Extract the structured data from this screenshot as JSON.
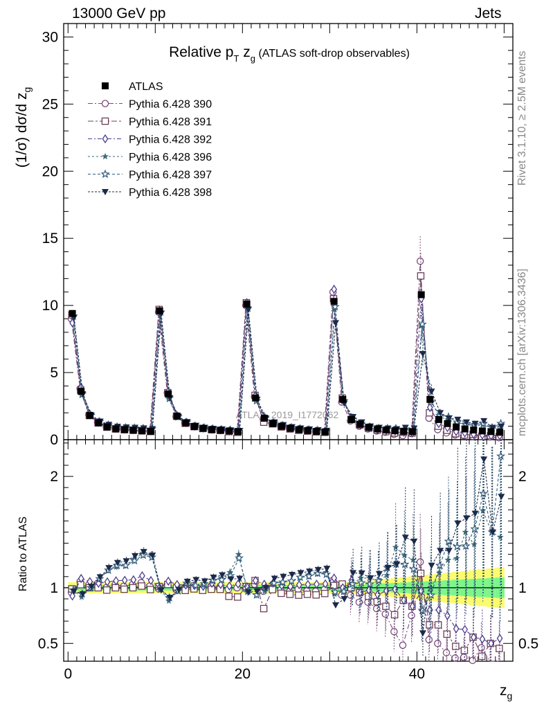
{
  "header": {
    "process": "13000 GeV pp",
    "category": "Jets"
  },
  "side_labels": {
    "generator": "Rivet 3.1.10, ≥ 2.5M events",
    "source": "mcplots.cern.ch [arXiv:1306.3436]"
  },
  "watermark": "ATLAS_2019_I1772062",
  "colors": {
    "atlas": "#000000",
    "s390": "#7b4a7d",
    "s391": "#6b3f55",
    "s392": "#4b3a8a",
    "s396": "#3e6a7a",
    "s397": "#2f5a7a",
    "s398": "#1c2a4a",
    "band_inner": "#7cf58c",
    "band_outer": "#fbfb6f"
  },
  "chart_data": {
    "type": "scatter",
    "title": "Relative p_T z_g (ATLAS soft-drop observables)",
    "title_parts": {
      "a": "Relative p",
      "b": "T",
      "c": " z",
      "d": "g",
      "e": " (ATLAS soft-drop observables)"
    },
    "xlabel": "z_g",
    "xlabel_parts": {
      "main": "z",
      "sub": "g"
    },
    "ylabel": "(1/σ) dσ/d z_g",
    "ylabel_parts": {
      "main": "(1/σ) dσ/d z",
      "sub": "g"
    },
    "ratio_ylabel": "Ratio to ATLAS",
    "xlim": [
      -0.5,
      51
    ],
    "ylim": [
      0,
      31
    ],
    "ratio_ylim": [
      0.34,
      2.33
    ],
    "x_ticks": [
      0,
      20,
      40
    ],
    "y_ticks": [
      0,
      5,
      10,
      15,
      20,
      25,
      30
    ],
    "ratio_ticks": [
      0.5,
      1,
      2
    ],
    "legend_position": "top-left",
    "x": [
      0.5,
      1.5,
      2.5,
      3.5,
      4.5,
      5.5,
      6.5,
      7.5,
      8.5,
      9.5,
      10.5,
      11.5,
      12.5,
      13.5,
      14.5,
      15.5,
      16.5,
      17.5,
      18.5,
      19.5,
      20.5,
      21.5,
      22.5,
      23.5,
      24.5,
      25.5,
      26.5,
      27.5,
      28.5,
      29.5,
      30.5,
      31.5,
      32.5,
      33.5,
      34.5,
      35.5,
      36.5,
      37.5,
      38.5,
      39.5,
      40.5,
      41.5,
      42.5,
      43.5,
      44.5,
      45.5,
      46.5,
      47.5,
      48.5,
      49.5
    ],
    "atlas": [
      9.4,
      3.6,
      1.8,
      1.25,
      0.95,
      0.8,
      0.75,
      0.7,
      0.65,
      0.62,
      9.6,
      3.4,
      1.75,
      1.25,
      0.98,
      0.85,
      0.75,
      0.7,
      0.65,
      0.6,
      10.1,
      3.1,
      1.6,
      1.2,
      1.0,
      0.85,
      0.75,
      0.68,
      0.62,
      0.58,
      10.3,
      3.0,
      1.5,
      1.15,
      0.92,
      0.8,
      0.72,
      0.66,
      0.62,
      0.6,
      10.8,
      3.0,
      1.5,
      1.2,
      0.95,
      0.8,
      0.72,
      0.65,
      0.6,
      0.55
    ],
    "series": [
      {
        "name": "Pythia 6.428 390",
        "key": "s390",
        "marker": "circle-open",
        "dash": "7,3,2,3",
        "values": [
          9.0,
          3.8,
          1.85,
          1.3,
          0.95,
          0.82,
          0.76,
          0.72,
          0.68,
          0.63,
          9.5,
          3.5,
          1.72,
          1.25,
          1.0,
          0.84,
          0.76,
          0.7,
          0.64,
          0.6,
          10.0,
          3.2,
          1.55,
          1.2,
          0.98,
          0.82,
          0.74,
          0.66,
          0.6,
          0.57,
          11.0,
          2.8,
          1.4,
          1.0,
          0.8,
          0.65,
          0.55,
          0.4,
          0.3,
          0.45,
          13.3,
          1.6,
          0.75,
          0.5,
          0.35,
          0.3,
          0.25,
          0.3,
          0.2,
          0.15
        ]
      },
      {
        "name": "Pythia 6.428 391",
        "key": "s391",
        "marker": "square-open",
        "dash": "8,3,3,3",
        "values": [
          9.3,
          3.7,
          1.8,
          1.25,
          0.93,
          0.8,
          0.74,
          0.7,
          0.66,
          0.61,
          9.7,
          3.5,
          1.75,
          1.22,
          0.97,
          0.83,
          0.74,
          0.69,
          0.6,
          0.55,
          10.2,
          3.3,
          1.3,
          1.18,
          0.95,
          0.8,
          0.7,
          0.64,
          0.58,
          0.55,
          10.5,
          3.1,
          1.5,
          1.1,
          0.85,
          0.7,
          0.6,
          0.5,
          0.55,
          0.5,
          12.2,
          2.0,
          1.0,
          0.7,
          0.45,
          0.35,
          0.4,
          0.25,
          0.3,
          0.25
        ]
      },
      {
        "name": "Pythia 6.428 392",
        "key": "s392",
        "marker": "diamond-open",
        "dash": "6,3,2,3",
        "values": [
          8.7,
          3.9,
          1.9,
          1.3,
          1.0,
          0.85,
          0.8,
          0.75,
          0.72,
          0.66,
          9.6,
          3.6,
          1.8,
          1.28,
          1.0,
          0.86,
          0.78,
          0.72,
          0.66,
          0.62,
          10.2,
          3.3,
          1.65,
          1.25,
          1.02,
          0.86,
          0.77,
          0.7,
          0.64,
          0.6,
          11.2,
          3.0,
          1.6,
          1.1,
          0.9,
          0.75,
          0.7,
          0.65,
          0.55,
          0.5,
          10.5,
          2.4,
          1.2,
          0.9,
          0.6,
          0.5,
          0.4,
          0.35,
          0.3,
          0.3
        ]
      },
      {
        "name": "Pythia 6.428 396",
        "key": "s396",
        "marker": "star-filled",
        "dash": "3,3",
        "values": [
          9.2,
          3.3,
          1.8,
          1.35,
          1.1,
          0.95,
          0.9,
          0.88,
          0.85,
          0.8,
          9.5,
          3.0,
          1.7,
          1.3,
          1.0,
          0.87,
          0.8,
          0.76,
          0.74,
          0.78,
          9.7,
          2.9,
          1.55,
          1.25,
          1.05,
          0.9,
          0.82,
          0.76,
          0.7,
          0.66,
          9.7,
          2.9,
          1.55,
          1.25,
          1.0,
          0.85,
          0.8,
          0.9,
          0.8,
          0.75,
          8.5,
          3.0,
          1.7,
          1.5,
          1.2,
          1.2,
          1.0,
          1.1,
          0.9,
          0.8
        ]
      },
      {
        "name": "Pythia 6.428 397",
        "key": "s397",
        "marker": "star-open",
        "dash": "4,3",
        "values": [
          9.2,
          3.4,
          1.8,
          1.35,
          1.1,
          0.96,
          0.9,
          0.87,
          0.84,
          0.79,
          9.5,
          3.1,
          1.7,
          1.3,
          1.0,
          0.88,
          0.8,
          0.75,
          0.72,
          0.76,
          9.8,
          2.9,
          1.6,
          1.25,
          1.05,
          0.9,
          0.82,
          0.75,
          0.7,
          0.65,
          9.9,
          2.9,
          1.55,
          1.2,
          0.95,
          0.85,
          0.85,
          0.8,
          0.75,
          0.7,
          8.6,
          2.8,
          1.8,
          1.7,
          1.3,
          1.1,
          1.1,
          1.2,
          0.9,
          1.2
        ]
      },
      {
        "name": "Pythia 6.428 398",
        "key": "s398",
        "marker": "triangle-down-filled",
        "dash": "3,2",
        "values": [
          9.1,
          3.4,
          1.82,
          1.37,
          1.12,
          0.98,
          0.93,
          0.9,
          0.86,
          0.8,
          9.4,
          3.1,
          1.72,
          1.32,
          1.05,
          0.9,
          0.82,
          0.78,
          0.7,
          0.65,
          9.7,
          3.0,
          1.6,
          1.3,
          1.1,
          0.95,
          0.85,
          0.78,
          0.72,
          0.68,
          8.7,
          2.7,
          1.7,
          1.3,
          1.0,
          0.9,
          0.85,
          0.8,
          0.9,
          0.85,
          6.4,
          3.6,
          2.0,
          1.6,
          1.5,
          1.3,
          1.2,
          1.4,
          0.9,
          1.0
        ]
      }
    ]
  }
}
